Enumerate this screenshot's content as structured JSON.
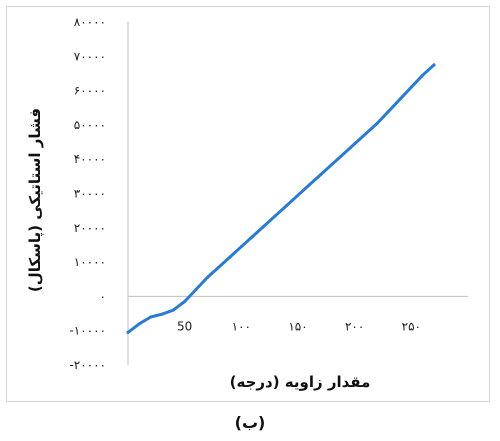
{
  "chart_data": {
    "type": "line",
    "xlabel": "مقدار زاویه (درجه)",
    "ylabel": "فشار استاتیکی (پاسکال)",
    "caption": "(ب)",
    "xlim": [
      0,
      300
    ],
    "ylim": [
      -20000,
      80000
    ],
    "x_ticks": [
      50,
      100,
      150,
      200,
      250
    ],
    "x_tick_labels": [
      "50",
      "۱۰۰",
      "۱۵۰",
      "۲۰۰",
      "۲۵۰"
    ],
    "y_ticks": [
      80000,
      70000,
      60000,
      50000,
      40000,
      30000,
      20000,
      10000,
      0,
      -10000,
      -20000
    ],
    "y_tick_labels": [
      "۸۰۰۰۰",
      "۷۰۰۰۰",
      "۶۰۰۰۰",
      "۵۰۰۰۰",
      "۴۰۰۰۰",
      "۳۰۰۰۰",
      "۲۰۰۰۰",
      "۱۰۰۰۰",
      "۰",
      "-۱۰۰۰۰",
      "-۲۰۰۰۰"
    ],
    "grid": false,
    "zero_line": true,
    "line_color": "#2b7bd0",
    "series": [
      {
        "x": [
          0,
          10,
          20,
          30,
          40,
          50,
          60,
          70,
          80,
          90,
          100,
          110,
          120,
          130,
          140,
          150,
          160,
          170,
          180,
          190,
          200,
          210,
          220,
          230,
          240,
          250,
          260,
          270
        ],
        "y": [
          -10500,
          -8000,
          -6000,
          -5200,
          -4000,
          -1500,
          2000,
          5500,
          8500,
          11500,
          14500,
          17500,
          20500,
          23500,
          26500,
          29500,
          32500,
          35500,
          38500,
          41500,
          44500,
          47500,
          50500,
          54000,
          57500,
          61000,
          64500,
          67500
        ]
      }
    ]
  }
}
